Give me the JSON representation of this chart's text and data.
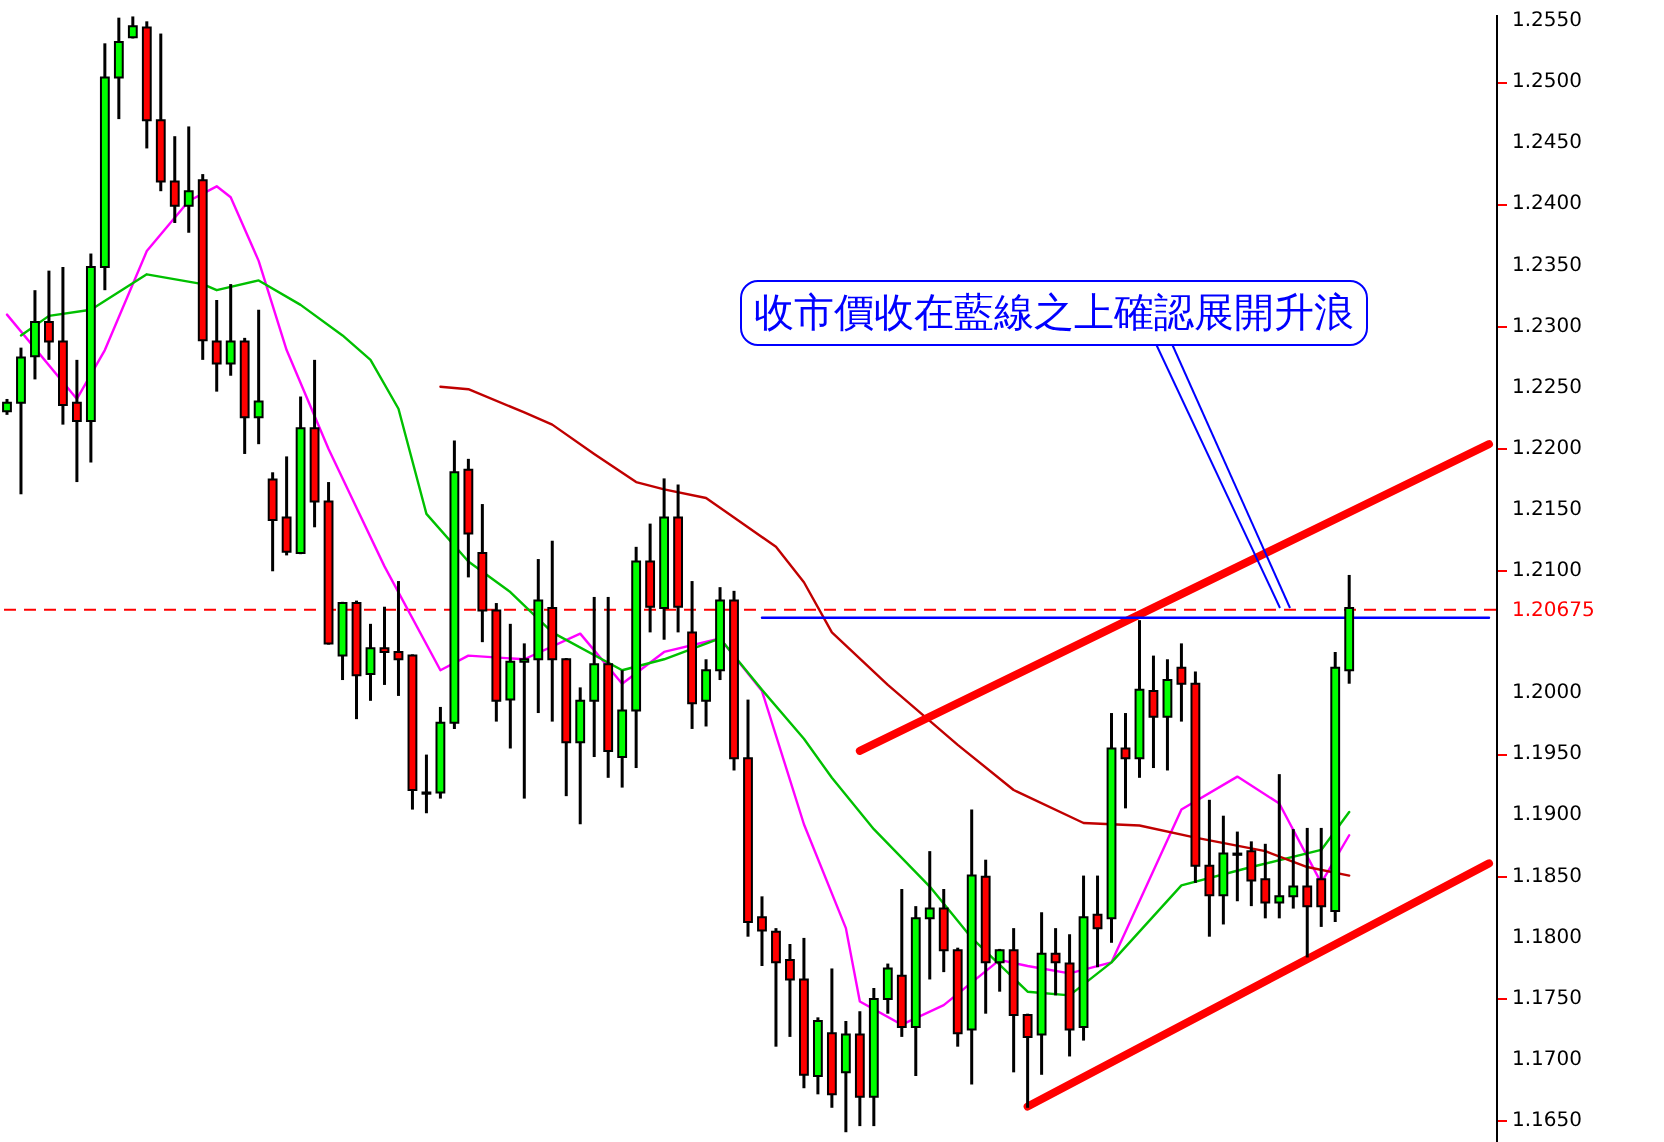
{
  "chart_data": {
    "type": "candlestick",
    "categories": [
      null,
      null,
      null,
      null,
      null,
      null,
      null,
      null,
      null,
      null,
      null,
      null,
      null,
      null,
      null,
      null,
      null,
      null,
      null,
      null,
      null,
      null,
      null,
      null,
      null,
      null,
      null,
      null,
      null,
      null,
      null,
      null,
      null,
      null,
      null,
      null,
      null,
      null,
      null,
      null,
      null,
      null,
      null,
      null,
      null,
      null,
      null,
      null,
      null,
      null,
      null,
      null,
      null,
      null,
      null,
      null,
      null,
      null,
      null,
      null,
      null,
      null,
      null,
      null,
      null,
      null,
      null,
      null,
      null,
      null,
      null,
      null,
      null,
      null,
      null,
      null,
      null,
      null,
      null,
      null,
      null,
      null,
      null,
      null,
      null,
      null,
      null,
      null,
      null,
      null,
      null,
      null,
      null,
      null,
      null,
      null,
      null,
      null,
      null,
      null,
      null,
      null,
      null,
      null,
      null,
      null,
      null
    ],
    "ohlc": [
      [
        1.223,
        1.224,
        1.2227,
        1.2237
      ],
      [
        1.2237,
        1.2282,
        1.2162,
        1.2274
      ],
      [
        1.2275,
        1.2329,
        1.2256,
        1.2303
      ],
      [
        1.2303,
        1.2345,
        1.2272,
        1.2287
      ],
      [
        1.2287,
        1.2348,
        1.2219,
        1.2235
      ],
      [
        1.2237,
        1.2272,
        1.2172,
        1.2222
      ],
      [
        1.2222,
        1.2359,
        1.2188,
        1.2348
      ],
      [
        1.2348,
        1.2531,
        1.2329,
        1.2503
      ],
      [
        1.2503,
        1.2552,
        1.2469,
        1.2532
      ],
      [
        1.2536,
        1.2553,
        1.2535,
        1.2545
      ],
      [
        1.2544,
        1.2549,
        1.2445,
        1.2468
      ],
      [
        1.2468,
        1.2539,
        1.241,
        1.2418
      ],
      [
        1.2418,
        1.2455,
        1.2384,
        1.2398
      ],
      [
        1.2398,
        1.2463,
        1.2376,
        1.241
      ],
      [
        1.2419,
        1.2424,
        1.2272,
        1.2288
      ],
      [
        1.2287,
        1.2321,
        1.2246,
        1.2269
      ],
      [
        1.2269,
        1.2334,
        1.2259,
        1.2287
      ],
      [
        1.2287,
        1.229,
        1.2195,
        1.2225
      ],
      [
        1.2225,
        1.2313,
        1.2203,
        1.2238
      ],
      [
        1.2174,
        1.218,
        1.2099,
        1.2141
      ],
      [
        1.2143,
        1.2193,
        1.2112,
        1.2115
      ],
      [
        1.2114,
        1.2242,
        1.2113,
        1.2216
      ],
      [
        1.2216,
        1.2272,
        1.2135,
        1.2156
      ],
      [
        1.2156,
        1.2172,
        1.2039,
        1.204
      ],
      [
        1.203,
        1.2074,
        1.201,
        1.2073
      ],
      [
        1.2073,
        1.2075,
        1.1978,
        1.2014
      ],
      [
        1.2015,
        1.2056,
        1.1993,
        1.2036
      ],
      [
        1.2036,
        1.207,
        1.2006,
        1.2033
      ],
      [
        1.2033,
        1.2091,
        1.1997,
        1.2027
      ],
      [
        1.203,
        1.2031,
        1.1904,
        1.192
      ],
      [
        1.1918,
        1.1949,
        1.1901,
        1.1917
      ],
      [
        1.1918,
        1.1988,
        1.1913,
        1.1975
      ],
      [
        1.1975,
        1.2206,
        1.197,
        1.218
      ],
      [
        1.2182,
        1.2191,
        1.2094,
        1.213
      ],
      [
        1.2114,
        1.2154,
        1.2041,
        1.2067
      ],
      [
        1.2067,
        1.2073,
        1.1976,
        1.1993
      ],
      [
        1.1994,
        1.2056,
        1.1954,
        1.2025
      ],
      [
        1.2025,
        1.204,
        1.1913,
        1.2027
      ],
      [
        1.2027,
        1.2109,
        1.1983,
        1.2075
      ],
      [
        1.2069,
        1.2124,
        1.1976,
        1.2027
      ],
      [
        1.2027,
        1.2028,
        1.1915,
        1.1959
      ],
      [
        1.1959,
        1.2004,
        1.1892,
        1.1993
      ],
      [
        1.1993,
        1.2078,
        1.1947,
        1.2023
      ],
      [
        1.2023,
        1.2078,
        1.193,
        1.1952
      ],
      [
        1.1947,
        1.2018,
        1.1922,
        1.1985
      ],
      [
        1.1985,
        1.2119,
        1.1938,
        1.2107
      ],
      [
        1.2107,
        1.2138,
        1.2049,
        1.207
      ],
      [
        1.2069,
        1.2175,
        1.2043,
        1.2143
      ],
      [
        1.2143,
        1.217,
        1.2049,
        1.207
      ],
      [
        1.2049,
        1.2091,
        1.197,
        1.1991
      ],
      [
        1.1993,
        1.2027,
        1.1972,
        1.2018
      ],
      [
        1.2018,
        1.2086,
        1.201,
        1.2075
      ],
      [
        1.2075,
        1.2083,
        1.1936,
        1.1946
      ],
      [
        1.1946,
        1.1994,
        1.18,
        1.1812
      ],
      [
        1.1816,
        1.1833,
        1.1776,
        1.1805
      ],
      [
        1.1804,
        1.1807,
        1.171,
        1.1779
      ],
      [
        1.1781,
        1.1794,
        1.1718,
        1.1765
      ],
      [
        1.1765,
        1.1799,
        1.1676,
        1.1687
      ],
      [
        1.1686,
        1.1734,
        1.1671,
        1.1731
      ],
      [
        1.1721,
        1.1774,
        1.166,
        1.1671
      ],
      [
        1.1689,
        1.1731,
        1.164,
        1.172
      ],
      [
        1.172,
        1.1739,
        1.1645,
        1.1669
      ],
      [
        1.1669,
        1.1758,
        1.1645,
        1.1749
      ],
      [
        1.1749,
        1.1778,
        1.1737,
        1.1774
      ],
      [
        1.1768,
        1.1839,
        1.1718,
        1.1726
      ],
      [
        1.1726,
        1.1825,
        1.1686,
        1.1815
      ],
      [
        1.1815,
        1.187,
        1.1765,
        1.1823
      ],
      [
        1.1823,
        1.1839,
        1.1771,
        1.1789
      ],
      [
        1.1789,
        1.1791,
        1.171,
        1.1721
      ],
      [
        1.1724,
        1.1904,
        1.1679,
        1.185
      ],
      [
        1.1849,
        1.1863,
        1.1737,
        1.1779
      ],
      [
        1.1779,
        1.179,
        1.1755,
        1.1789
      ],
      [
        1.1789,
        1.1807,
        1.1689,
        1.1736
      ],
      [
        1.1736,
        1.1737,
        1.166,
        1.1718
      ],
      [
        1.172,
        1.182,
        1.1687,
        1.1786
      ],
      [
        1.1786,
        1.1807,
        1.1752,
        1.1779
      ],
      [
        1.1778,
        1.1802,
        1.1702,
        1.1724
      ],
      [
        1.1726,
        1.185,
        1.1715,
        1.1816
      ],
      [
        1.1818,
        1.185,
        1.1775,
        1.1807
      ],
      [
        1.1815,
        1.1983,
        1.1795,
        1.1954
      ],
      [
        1.1954,
        1.1983,
        1.1905,
        1.1946
      ],
      [
        1.1946,
        1.2059,
        1.193,
        1.2002
      ],
      [
        1.2001,
        1.203,
        1.1938,
        1.198
      ],
      [
        1.198,
        1.2027,
        1.1936,
        1.201
      ],
      [
        1.202,
        1.204,
        1.1976,
        1.2007
      ],
      [
        1.2007,
        1.2017,
        1.1844,
        1.1858
      ],
      [
        1.1858,
        1.1912,
        1.18,
        1.1834
      ],
      [
        1.1834,
        1.1899,
        1.181,
        1.1868
      ],
      [
        1.1868,
        1.1886,
        1.1829,
        1.1867
      ],
      [
        1.187,
        1.1878,
        1.1825,
        1.1846
      ],
      [
        1.1847,
        1.1876,
        1.1815,
        1.1828
      ],
      [
        1.1828,
        1.1933,
        1.1815,
        1.1833
      ],
      [
        1.1833,
        1.1888,
        1.1823,
        1.1841
      ],
      [
        1.1841,
        1.1889,
        1.1783,
        1.1825
      ],
      [
        1.1847,
        1.1889,
        1.1808,
        1.1825
      ],
      [
        1.1821,
        1.2033,
        1.1812,
        1.202
      ],
      [
        1.2018,
        1.2096,
        1.2007,
        1.2069
      ],
      null,
      null,
      null,
      null,
      null,
      null,
      null,
      null,
      null,
      null
    ],
    "colors": [
      "#00ff00",
      "#00ff00",
      "#00ff00",
      "#ff0000",
      "#ff0000",
      "#ff0000",
      "#00ff00",
      "#00ff00",
      "#00ff00",
      "#00ff00",
      "#ff0000",
      "#ff0000",
      "#ff0000",
      "#00ff00",
      "#ff0000",
      "#ff0000",
      "#00ff00",
      "#ff0000",
      "#00ff00",
      "#ff0000",
      "#ff0000",
      "#00ff00",
      "#ff0000",
      "#ff0000",
      "#00ff00",
      "#ff0000",
      "#00ff00",
      "#ff0000",
      "#ff0000",
      "#ff0000",
      "#ff0000",
      "#00ff00",
      "#00ff00",
      "#ff0000",
      "#ff0000",
      "#ff0000",
      "#00ff00",
      "#00ff00",
      "#00ff00",
      "#ff0000",
      "#ff0000",
      "#00ff00",
      "#00ff00",
      "#ff0000",
      "#00ff00",
      "#00ff00",
      "#ff0000",
      "#00ff00",
      "#ff0000",
      "#ff0000",
      "#00ff00",
      "#00ff00",
      "#ff0000",
      "#ff0000",
      "#ff0000",
      "#ff0000",
      "#ff0000",
      "#ff0000",
      "#00ff00",
      "#ff0000",
      "#00ff00",
      "#ff0000",
      "#00ff00",
      "#00ff00",
      "#ff0000",
      "#00ff00",
      "#00ff00",
      "#ff0000",
      "#ff0000",
      "#00ff00",
      "#ff0000",
      "#00ff00",
      "#ff0000",
      "#ff0000",
      "#00ff00",
      "#ff0000",
      "#ff0000",
      "#00ff00",
      "#ff0000",
      "#00ff00",
      "#ff0000",
      "#00ff00",
      "#ff0000",
      "#00ff00",
      "#ff0000",
      "#ff0000",
      "#ff0000",
      "#00ff00",
      "#ff0000",
      "#ff0000",
      "#ff0000",
      "#00ff00",
      "#00ff00",
      "#ff0000",
      "#ff0000",
      "#00ff00",
      "#00ff00",
      null,
      null,
      null,
      null,
      null,
      null,
      null,
      null,
      null,
      null
    ],
    "series": [
      {
        "type": "line",
        "color": "#ff00ff",
        "values": [
          1.2309,
          null,
          null,
          null,
          null,
          1.224,
          null,
          1.228,
          null,
          null,
          1.2361,
          null,
          null,
          1.2402,
          null,
          1.2414,
          1.2405,
          null,
          1.2353,
          null,
          1.228,
          null,
          null,
          1.2199,
          null,
          null,
          null,
          1.2103,
          null,
          null,
          null,
          1.2018,
          null,
          1.203,
          null,
          null,
          null,
          1.2027,
          null,
          null,
          null,
          1.2048,
          null,
          null,
          1.2007,
          null,
          null,
          1.2033,
          null,
          null,
          null,
          1.2044,
          null,
          null,
          1.2001,
          null,
          null,
          1.1892,
          null,
          null,
          1.1807,
          1.1747,
          null,
          null,
          1.1728,
          null,
          null,
          1.1744,
          null,
          null,
          null,
          1.1781,
          null,
          1.1776,
          null,
          null,
          1.177,
          null,
          null,
          1.1779,
          null,
          null,
          null,
          null,
          1.1904,
          null,
          null,
          null,
          1.1931,
          null,
          null,
          1.1909,
          null,
          null,
          1.1844,
          null,
          1.1883,
          null,
          null,
          null,
          null,
          null,
          null,
          null,
          null,
          null,
          null
        ]
      },
      {
        "type": "line",
        "color": "#00c000",
        "values": [
          null,
          1.2292,
          null,
          1.2308,
          null,
          null,
          1.2313,
          null,
          null,
          null,
          1.2342,
          null,
          null,
          null,
          1.2334,
          1.2329,
          null,
          null,
          1.2337,
          null,
          null,
          1.2317,
          null,
          null,
          1.2292,
          null,
          1.2272,
          null,
          1.2232,
          null,
          1.2146,
          null,
          null,
          1.2107,
          null,
          null,
          1.2082,
          null,
          null,
          1.2049,
          null,
          null,
          null,
          null,
          1.2018,
          null,
          null,
          1.2027,
          null,
          null,
          null,
          1.2044,
          null,
          null,
          1.2002,
          null,
          null,
          1.1962,
          null,
          1.193,
          null,
          null,
          1.1888,
          null,
          null,
          null,
          1.1841,
          null,
          null,
          1.1799,
          null,
          null,
          null,
          1.1755,
          null,
          null,
          1.1752,
          null,
          null,
          1.1779,
          null,
          null,
          null,
          null,
          1.1842,
          null,
          null,
          null,
          null,
          1.1857,
          null,
          null,
          null,
          null,
          1.1871,
          null,
          1.1902,
          null,
          null,
          null,
          null,
          null,
          null,
          null,
          null,
          null,
          null
        ]
      },
      {
        "type": "line",
        "color": "#c00000",
        "values": [
          null,
          null,
          null,
          null,
          null,
          null,
          null,
          null,
          null,
          null,
          null,
          null,
          null,
          null,
          null,
          null,
          null,
          null,
          null,
          null,
          null,
          null,
          null,
          null,
          null,
          null,
          null,
          null,
          null,
          null,
          null,
          1.225,
          null,
          1.2248,
          null,
          null,
          null,
          1.2229,
          null,
          1.2219,
          null,
          null,
          1.2195,
          null,
          null,
          1.2172,
          null,
          1.2166,
          null,
          null,
          1.2159,
          null,
          1.2143,
          null,
          null,
          1.2119,
          null,
          1.209,
          null,
          1.2049,
          null,
          null,
          null,
          1.2006,
          null,
          null,
          null,
          null,
          1.1957,
          null,
          null,
          null,
          1.192,
          null,
          null,
          null,
          null,
          1.1893,
          null,
          null,
          null,
          1.1891,
          null,
          null,
          null,
          1.1881,
          null,
          null,
          null,
          null,
          1.187,
          null,
          null,
          1.1857,
          null,
          null,
          1.185,
          null,
          null,
          null,
          null,
          null,
          null,
          null,
          null,
          null,
          null
        ]
      },
      {
        "type": "line",
        "color": "#ff0000",
        "values": [
          null,
          null,
          null,
          null,
          null,
          null,
          null,
          null,
          null,
          null,
          null,
          null,
          null,
          null,
          null,
          null,
          null,
          null,
          null,
          null,
          null,
          null,
          null,
          null,
          null,
          null,
          null,
          null,
          null,
          null,
          null,
          null,
          null,
          null,
          null,
          null,
          null,
          null,
          null,
          null,
          null,
          null,
          null,
          null,
          null,
          null,
          null,
          null,
          null,
          null,
          null,
          null,
          null,
          null,
          null,
          null,
          null,
          null,
          null,
          null,
          null,
          1.1952,
          null,
          null,
          null,
          null,
          null,
          null,
          null,
          null,
          null,
          null,
          null,
          null,
          null,
          null,
          null,
          null,
          null,
          null,
          null,
          null,
          null,
          null,
          null,
          null,
          null,
          null,
          null,
          null,
          null,
          null,
          null,
          null,
          null,
          null,
          null,
          null,
          null,
          null,
          null,
          null,
          null,
          null,
          null,
          null,
          1.2203
        ]
      },
      {
        "type": "line",
        "color": "#ff0000",
        "values": [
          null,
          null,
          null,
          null,
          null,
          null,
          null,
          null,
          null,
          null,
          null,
          null,
          null,
          null,
          null,
          null,
          null,
          null,
          null,
          null,
          null,
          null,
          null,
          null,
          null,
          null,
          null,
          null,
          null,
          null,
          null,
          null,
          null,
          null,
          null,
          null,
          null,
          null,
          null,
          null,
          null,
          null,
          null,
          null,
          null,
          null,
          null,
          null,
          null,
          null,
          null,
          null,
          null,
          null,
          null,
          null,
          null,
          null,
          null,
          null,
          null,
          null,
          null,
          null,
          null,
          null,
          null,
          null,
          null,
          null,
          null,
          null,
          null,
          1.1661,
          null,
          null,
          null,
          null,
          null,
          null,
          null,
          null,
          null,
          null,
          null,
          null,
          null,
          null,
          null,
          null,
          null,
          null,
          null,
          null,
          null,
          null,
          null,
          null,
          null,
          null,
          null,
          null,
          null,
          null,
          null,
          null,
          1.186
        ]
      },
      {
        "type": "line",
        "color": "#0000ff",
        "values": [
          null,
          null,
          null,
          null,
          null,
          null,
          null,
          null,
          null,
          null,
          null,
          null,
          null,
          null,
          null,
          null,
          null,
          null,
          null,
          null,
          null,
          null,
          null,
          null,
          null,
          null,
          null,
          null,
          null,
          null,
          null,
          null,
          null,
          null,
          null,
          null,
          null,
          null,
          null,
          null,
          null,
          null,
          null,
          null,
          null,
          null,
          null,
          null,
          null,
          null,
          null,
          null,
          null,
          null,
          1.2061,
          null,
          null,
          null,
          null,
          null,
          null,
          null,
          null,
          null,
          null,
          null,
          null,
          null,
          null,
          null,
          null,
          null,
          null,
          null,
          null,
          null,
          null,
          null,
          null,
          null,
          null,
          null,
          null,
          null,
          null,
          null,
          null,
          null,
          null,
          null,
          null,
          null,
          null,
          null,
          null,
          null,
          null,
          null,
          null,
          null,
          null,
          null,
          null,
          null,
          null,
          null,
          1.2061
        ]
      }
    ],
    "ylim": [
      1.1632,
      1.2555
    ],
    "yticks": [
      {
        "value": 1.165,
        "label": "1.1650"
      },
      {
        "value": 1.17,
        "label": "1.1700"
      },
      {
        "value": 1.175,
        "label": "1.1750"
      },
      {
        "value": 1.18,
        "label": "1.1800"
      },
      {
        "value": 1.185,
        "label": "1.1850"
      },
      {
        "value": 1.19,
        "label": "1.1900"
      },
      {
        "value": 1.195,
        "label": "1.1950"
      },
      {
        "value": 1.2,
        "label": "1.2000"
      },
      {
        "value": 1.21,
        "label": "1.2100"
      },
      {
        "value": 1.215,
        "label": "1.2150"
      },
      {
        "value": 1.22,
        "label": "1.2200"
      },
      {
        "value": 1.225,
        "label": "1.2250"
      },
      {
        "value": 1.23,
        "label": "1.2300"
      },
      {
        "value": 1.235,
        "label": "1.2350"
      },
      {
        "value": 1.24,
        "label": "1.2400"
      },
      {
        "value": 1.245,
        "label": "1.2450"
      },
      {
        "value": 1.25,
        "label": "1.2500"
      },
      {
        "value": 1.255,
        "label": "1.2550"
      }
    ],
    "tick_labels": "y",
    "ref_lines": [
      {
        "axis": "y",
        "value": 1.20675,
        "label": "1.20675",
        "color": "#ff0000",
        "line_style": "dashed"
      }
    ],
    "annotations": [
      "收市價收在藍線之上確認展開升浪"
    ]
  }
}
